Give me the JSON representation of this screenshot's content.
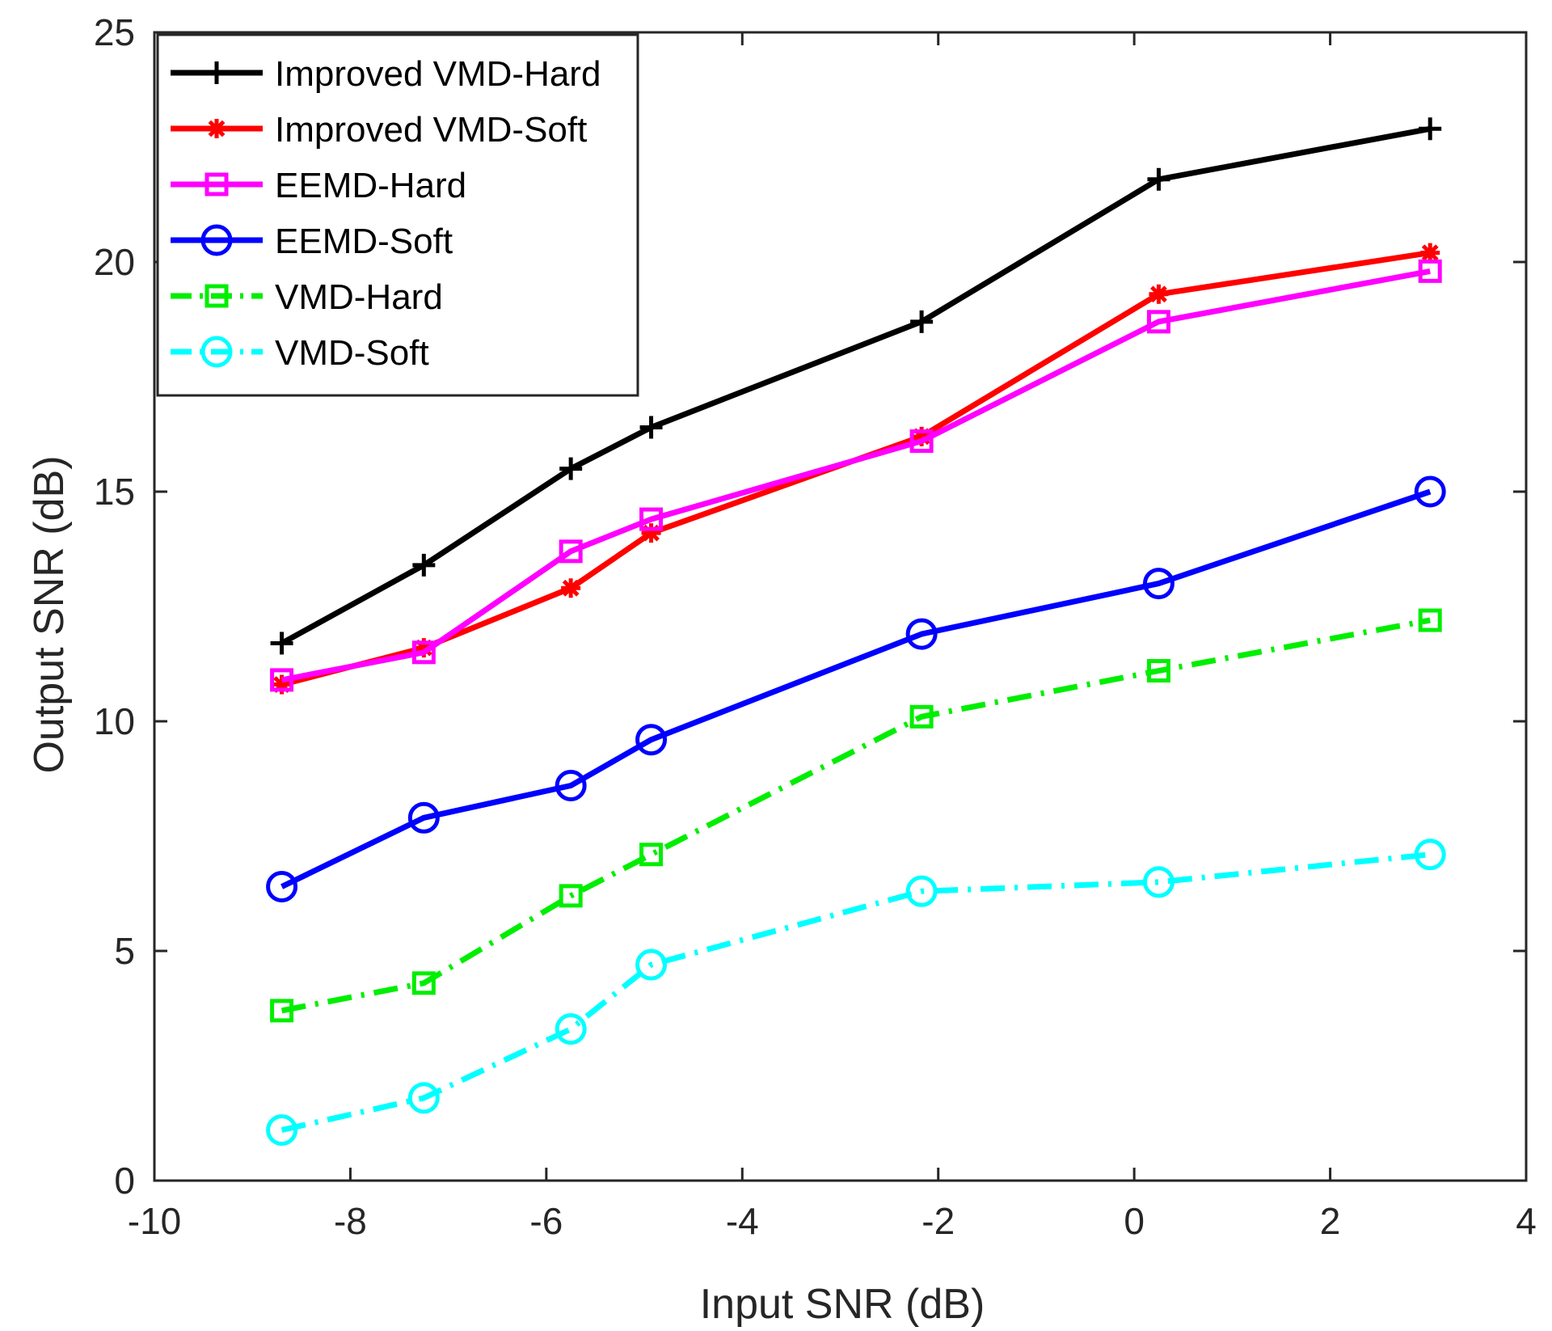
{
  "chart_data": {
    "type": "line",
    "title": "",
    "xlabel": "Input SNR (dB)",
    "ylabel": "Output SNR (dB)",
    "xlim": [
      -10,
      4
    ],
    "ylim": [
      0,
      25
    ],
    "xticks": [
      -10,
      -8,
      -6,
      -4,
      -2,
      0,
      2,
      4
    ],
    "yticks": [
      0,
      5,
      10,
      15,
      20,
      25
    ],
    "grid": false,
    "legend_position": "top-left",
    "x": [
      -8.7,
      -7.25,
      -5.75,
      -4.93,
      -2.17,
      0.25,
      3.02
    ],
    "series": [
      {
        "name": "Improved VMD-Hard",
        "color": "#000000",
        "line": "solid",
        "marker": "plus",
        "values": [
          11.7,
          13.4,
          15.5,
          16.4,
          18.7,
          21.8,
          22.9
        ]
      },
      {
        "name": "Improved VMD-Soft",
        "color": "#ff0000",
        "line": "solid",
        "marker": "asterisk",
        "values": [
          10.8,
          11.6,
          12.9,
          14.1,
          16.2,
          19.3,
          20.2
        ]
      },
      {
        "name": "EEMD-Hard",
        "color": "#ff00ff",
        "line": "solid",
        "marker": "square",
        "values": [
          10.9,
          11.5,
          13.7,
          14.4,
          16.1,
          18.7,
          19.8
        ]
      },
      {
        "name": "EEMD-Soft",
        "color": "#0000ff",
        "line": "solid",
        "marker": "circle",
        "values": [
          6.4,
          7.9,
          8.6,
          9.6,
          11.9,
          13.0,
          15.0
        ]
      },
      {
        "name": "VMD-Hard",
        "color": "#00ee00",
        "line": "dashdot",
        "marker": "square",
        "values": [
          3.7,
          4.3,
          6.2,
          7.1,
          10.1,
          11.1,
          12.2
        ]
      },
      {
        "name": "VMD-Soft",
        "color": "#00ffff",
        "line": "dashdot",
        "marker": "circle",
        "values": [
          1.1,
          1.8,
          3.3,
          4.7,
          6.3,
          6.5,
          7.1
        ]
      }
    ]
  }
}
